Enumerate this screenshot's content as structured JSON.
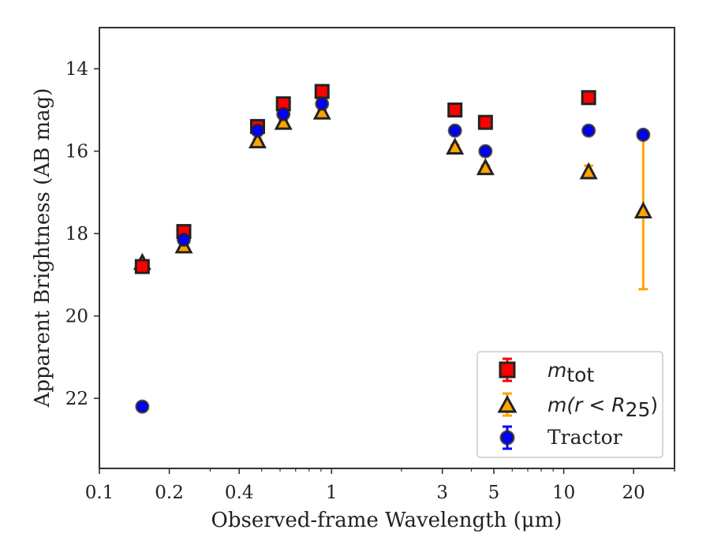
{
  "chart_data": {
    "type": "scatter",
    "title": "",
    "xlabel": "Observed-frame Wavelength (μm)",
    "ylabel": "Apparent Brightness (AB mag)",
    "xscale": "log",
    "yscale": "linear",
    "y_inverted": true,
    "xlim": [
      0.1,
      30
    ],
    "ylim": [
      23.7,
      13.0
    ],
    "x_ticks": [
      0.1,
      0.2,
      0.4,
      1,
      3,
      5,
      10,
      20
    ],
    "x_tick_labels": [
      "0.1",
      "0.2",
      "0.4",
      "1",
      "3",
      "5",
      "10",
      "20"
    ],
    "y_ticks": [
      14,
      16,
      18,
      20,
      22
    ],
    "y_tick_labels": [
      "14",
      "16",
      "18",
      "20",
      "22"
    ],
    "grid": false,
    "legend_position": "lower-right",
    "series": [
      {
        "name": "m_tot",
        "marker": "square",
        "color": "#ff0000",
        "edge_color": "#222222",
        "x": [
          0.153,
          0.231,
          0.48,
          0.62,
          0.91,
          3.4,
          4.6,
          12.8
        ],
        "y": [
          18.8,
          17.95,
          15.4,
          14.85,
          14.55,
          15.0,
          15.3,
          14.7
        ],
        "yerr": [
          0.05,
          0.05,
          0.05,
          0.05,
          0.05,
          0.05,
          0.05,
          0.05
        ]
      },
      {
        "name": "m(r < R25)",
        "marker": "triangle",
        "color": "#ffa500",
        "edge_color": "#222222",
        "x": [
          0.153,
          0.231,
          0.48,
          0.62,
          0.91,
          3.4,
          4.6,
          12.8,
          22.0
        ],
        "y": [
          18.7,
          18.3,
          15.75,
          15.3,
          15.05,
          15.9,
          16.4,
          16.5,
          17.45
        ],
        "yerr": [
          0.05,
          0.05,
          0.05,
          0.05,
          0.05,
          0.05,
          0.05,
          0.15,
          1.9
        ]
      },
      {
        "name": "Tractor",
        "marker": "circle",
        "color": "#0000ff",
        "edge_color": "#222222",
        "x": [
          0.153,
          0.231,
          0.48,
          0.62,
          0.91,
          3.4,
          4.6,
          12.8,
          22.0
        ],
        "y": [
          22.2,
          18.15,
          15.5,
          15.1,
          14.85,
          15.5,
          16.0,
          15.5,
          15.6
        ],
        "yerr": [
          0.05,
          0.05,
          0.05,
          0.05,
          0.05,
          0.05,
          0.05,
          0.05,
          0.05
        ]
      }
    ]
  },
  "legend": {
    "m_tot_base": "m",
    "m_tot_sub": "tot",
    "m_r_prefix": "m(r < R",
    "m_r_sub": "25",
    "m_r_suffix": ")",
    "tractor": "Tractor"
  },
  "colors": {
    "axes": "#333333",
    "red": "#ff0000",
    "orange": "#ffa500",
    "blue": "#0000ff"
  }
}
